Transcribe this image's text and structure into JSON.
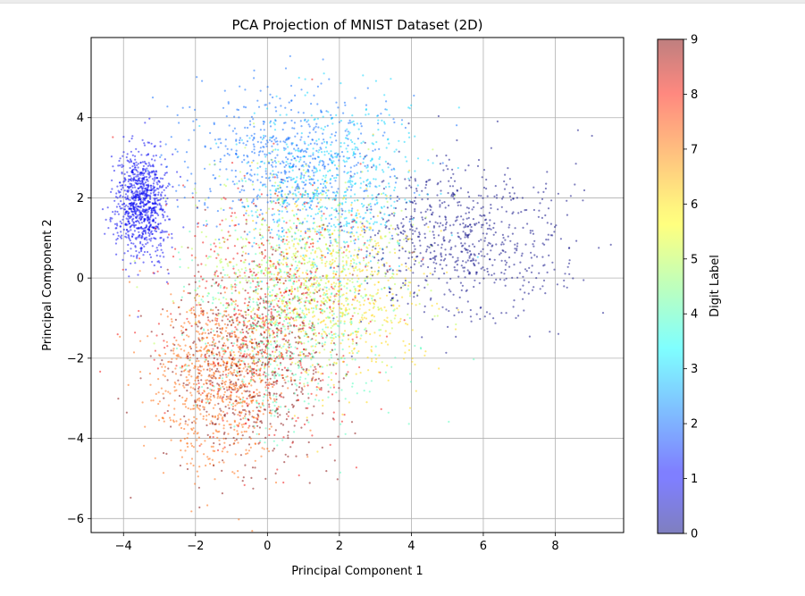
{
  "chart_data": {
    "type": "scatter",
    "title": "PCA Projection of MNIST Dataset (2D)",
    "xlabel": "Principal Component 1",
    "ylabel": "Principal Component 2",
    "xlim": [
      -4.9,
      9.9
    ],
    "ylim": [
      -6.35,
      6.0
    ],
    "xticks": [
      -4,
      -2,
      0,
      2,
      4,
      6,
      8
    ],
    "yticks": [
      -6,
      -4,
      -2,
      0,
      2,
      4
    ],
    "xtick_labels": [
      "−4",
      "−2",
      "0",
      "2",
      "4",
      "6",
      "8"
    ],
    "ytick_labels": [
      "−6",
      "−4",
      "−2",
      "0",
      "2",
      "4"
    ],
    "grid": true,
    "colormap": "jet",
    "point_alpha": 0.5,
    "colorbar": {
      "label": "Digit Label",
      "range": [
        0,
        9
      ],
      "ticks": [
        0,
        1,
        2,
        3,
        4,
        5,
        6,
        7,
        8,
        9
      ],
      "tick_labels": [
        "0",
        "1",
        "2",
        "3",
        "4",
        "5",
        "6",
        "7",
        "8",
        "9"
      ]
    },
    "clusters": [
      {
        "digit": 0,
        "center": [
          5.3,
          0.9
        ],
        "spread": [
          1.5,
          0.95
        ],
        "n": 750
      },
      {
        "digit": 1,
        "center": [
          -3.5,
          1.9
        ],
        "spread": [
          0.35,
          0.7
        ],
        "n": 900
      },
      {
        "digit": 2,
        "center": [
          0.6,
          2.9
        ],
        "spread": [
          1.4,
          0.9
        ],
        "n": 650
      },
      {
        "digit": 3,
        "center": [
          1.8,
          2.4
        ],
        "spread": [
          1.2,
          1.0
        ],
        "n": 550
      },
      {
        "digit": 4,
        "center": [
          0.6,
          -1.2
        ],
        "spread": [
          1.3,
          1.3
        ],
        "n": 600
      },
      {
        "digit": 5,
        "center": [
          1.0,
          0.3
        ],
        "spread": [
          1.5,
          1.2
        ],
        "n": 550
      },
      {
        "digit": 6,
        "center": [
          1.9,
          -0.4
        ],
        "spread": [
          1.3,
          1.1
        ],
        "n": 600
      },
      {
        "digit": 7,
        "center": [
          -1.4,
          -2.5
        ],
        "spread": [
          0.9,
          1.1
        ],
        "n": 800
      },
      {
        "digit": 8,
        "center": [
          0.0,
          -0.8
        ],
        "spread": [
          1.4,
          1.6
        ],
        "n": 550
      },
      {
        "digit": 9,
        "center": [
          -0.6,
          -2.1
        ],
        "spread": [
          1.2,
          1.3
        ],
        "n": 650
      }
    ]
  }
}
